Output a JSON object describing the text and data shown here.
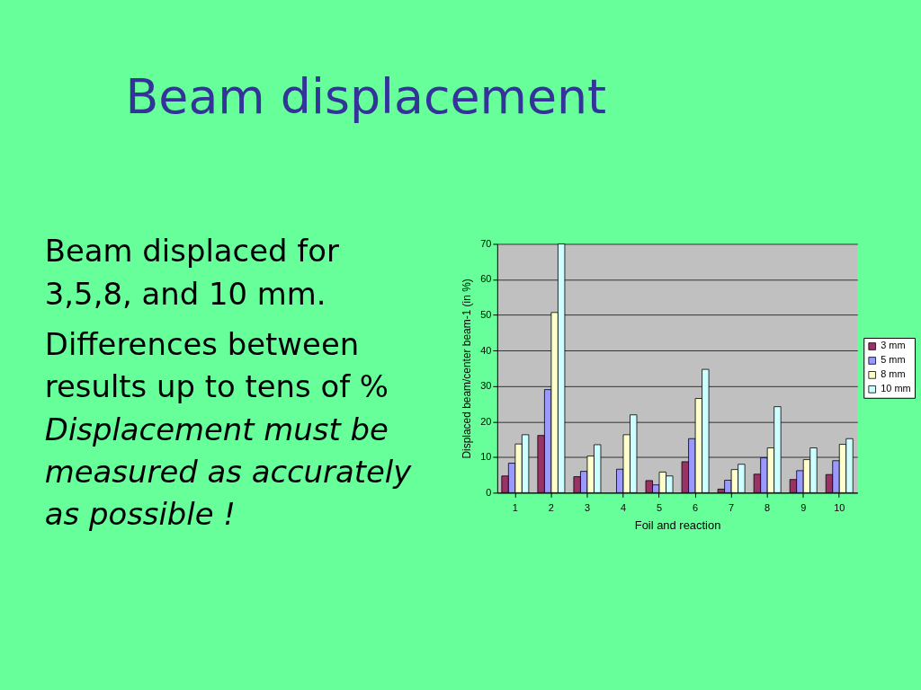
{
  "chart_data": {
    "type": "bar",
    "title": "Beam displacement",
    "annotations": [
      "Beam displaced for 3,5,8, and 10 mm.",
      "Differences between results up to tens of %",
      "Displacement must be measured as accurately as possible !"
    ],
    "xlabel": "Foil and reaction",
    "ylabel": "Displaced beam/center beam-1 (in %)",
    "categories": [
      "1",
      "2",
      "3",
      "4",
      "5",
      "6",
      "7",
      "8",
      "9",
      "10"
    ],
    "series": [
      {
        "name": "3 mm",
        "color": "#993366",
        "values": [
          4.7,
          16.1,
          4.5,
          null,
          3.4,
          8.7,
          1.0,
          5.2,
          3.7,
          5.1
        ]
      },
      {
        "name": "5 mm",
        "color": "#9999ff",
        "values": [
          8.3,
          29.0,
          6.0,
          6.6,
          2.2,
          15.2,
          3.5,
          9.8,
          6.2,
          9.0
        ]
      },
      {
        "name": "8 mm",
        "color": "#ffffcc",
        "values": [
          13.7,
          50.7,
          10.3,
          16.3,
          5.8,
          26.5,
          6.5,
          12.6,
          9.3,
          13.6
        ]
      },
      {
        "name": "10 mm",
        "color": "#ccffff",
        "values": [
          16.3,
          70,
          13.5,
          21.9,
          4.7,
          34.7,
          8.0,
          24.2,
          12.6,
          15.2
        ]
      }
    ],
    "ylim": [
      0,
      70
    ],
    "yticks": [
      0,
      10,
      20,
      30,
      40,
      50,
      60,
      70
    ],
    "grid": "y",
    "legend": "right"
  }
}
